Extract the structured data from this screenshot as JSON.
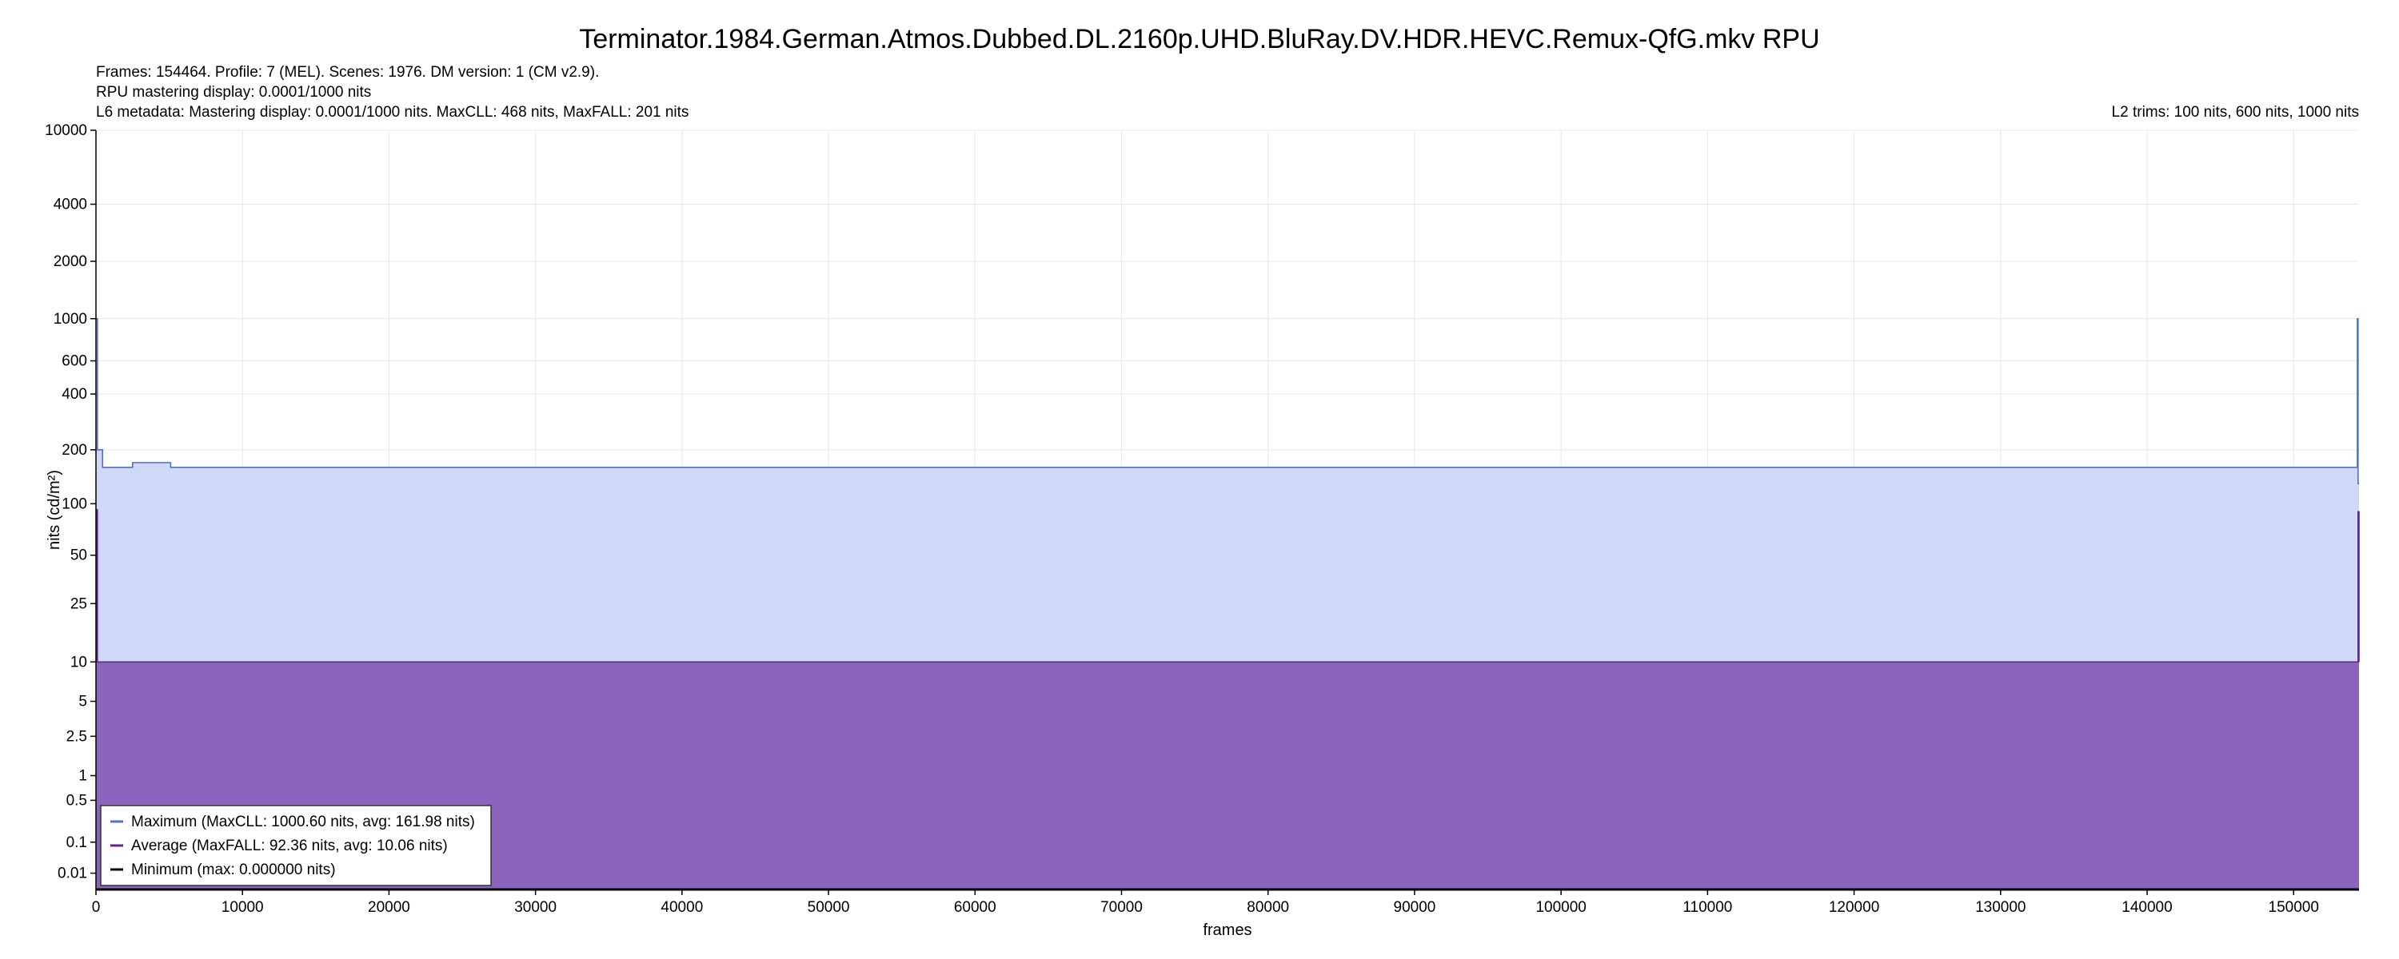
{
  "chart_data": {
    "type": "area",
    "title": "Terminator.1984.German.Atmos.Dubbed.DL.2160p.UHD.BluRay.DV.HDR.HEVC.Remux-QfG.mkv RPU",
    "info_lines": [
      "Frames: 154464. Profile: 7 (MEL). Scenes: 1976. DM version: 1 (CM v2.9).",
      "RPU mastering display: 0.0001/1000 nits",
      "L6 metadata: Mastering display: 0.0001/1000 nits. MaxCLL: 468 nits, MaxFALL: 201 nits"
    ],
    "l2_trims": "L2 trims: 100 nits, 600 nits, 1000 nits",
    "xlabel": "frames",
    "ylabel": "nits (cd/m²)",
    "xlim": [
      0,
      154464
    ],
    "y_scale": "pq",
    "ylim": [
      0,
      10000
    ],
    "x_ticks": [
      0,
      10000,
      20000,
      30000,
      40000,
      50000,
      60000,
      70000,
      80000,
      90000,
      100000,
      110000,
      120000,
      130000,
      140000,
      150000
    ],
    "y_ticks": [
      0.01,
      0.1,
      0.5,
      1,
      2.5,
      5,
      10,
      25,
      50,
      100,
      200,
      400,
      600,
      1000,
      2000,
      4000,
      10000
    ],
    "y_tick_labels": [
      "0.01",
      "0.1",
      "0.5",
      "1",
      "2.5",
      "5",
      "10",
      "25",
      "50",
      "100",
      "200",
      "400",
      "600",
      "1000",
      "2000",
      "4000",
      "10000"
    ],
    "grid": true,
    "legend_position": "bottom-left",
    "series": [
      {
        "name": "Maximum (MaxCLL: 1000.60 nits, avg: 161.98 nits)",
        "color": "#4f6fd6",
        "fill": "#cfd8f6",
        "x": [
          0,
          100,
          150,
          400,
          450,
          2000,
          2500,
          5000,
          5100,
          154300,
          154350,
          154400,
          154464
        ],
        "y": [
          1000,
          200,
          200,
          200,
          160,
          160,
          170,
          170,
          160,
          160,
          1000,
          130,
          130
        ]
      },
      {
        "name": "Average (MaxFALL: 92.36 nits, avg: 10.06 nits)",
        "color": "#5b2a86",
        "fill": "#8a64bd",
        "x": [
          0,
          50,
          100,
          154350,
          154400,
          154464
        ],
        "y": [
          10,
          92.36,
          10,
          10,
          90,
          10
        ]
      },
      {
        "name": "Minimum (max: 0.000000 nits)",
        "color": "#000000",
        "x": [
          0,
          154464
        ],
        "y": [
          0,
          0
        ]
      }
    ]
  }
}
